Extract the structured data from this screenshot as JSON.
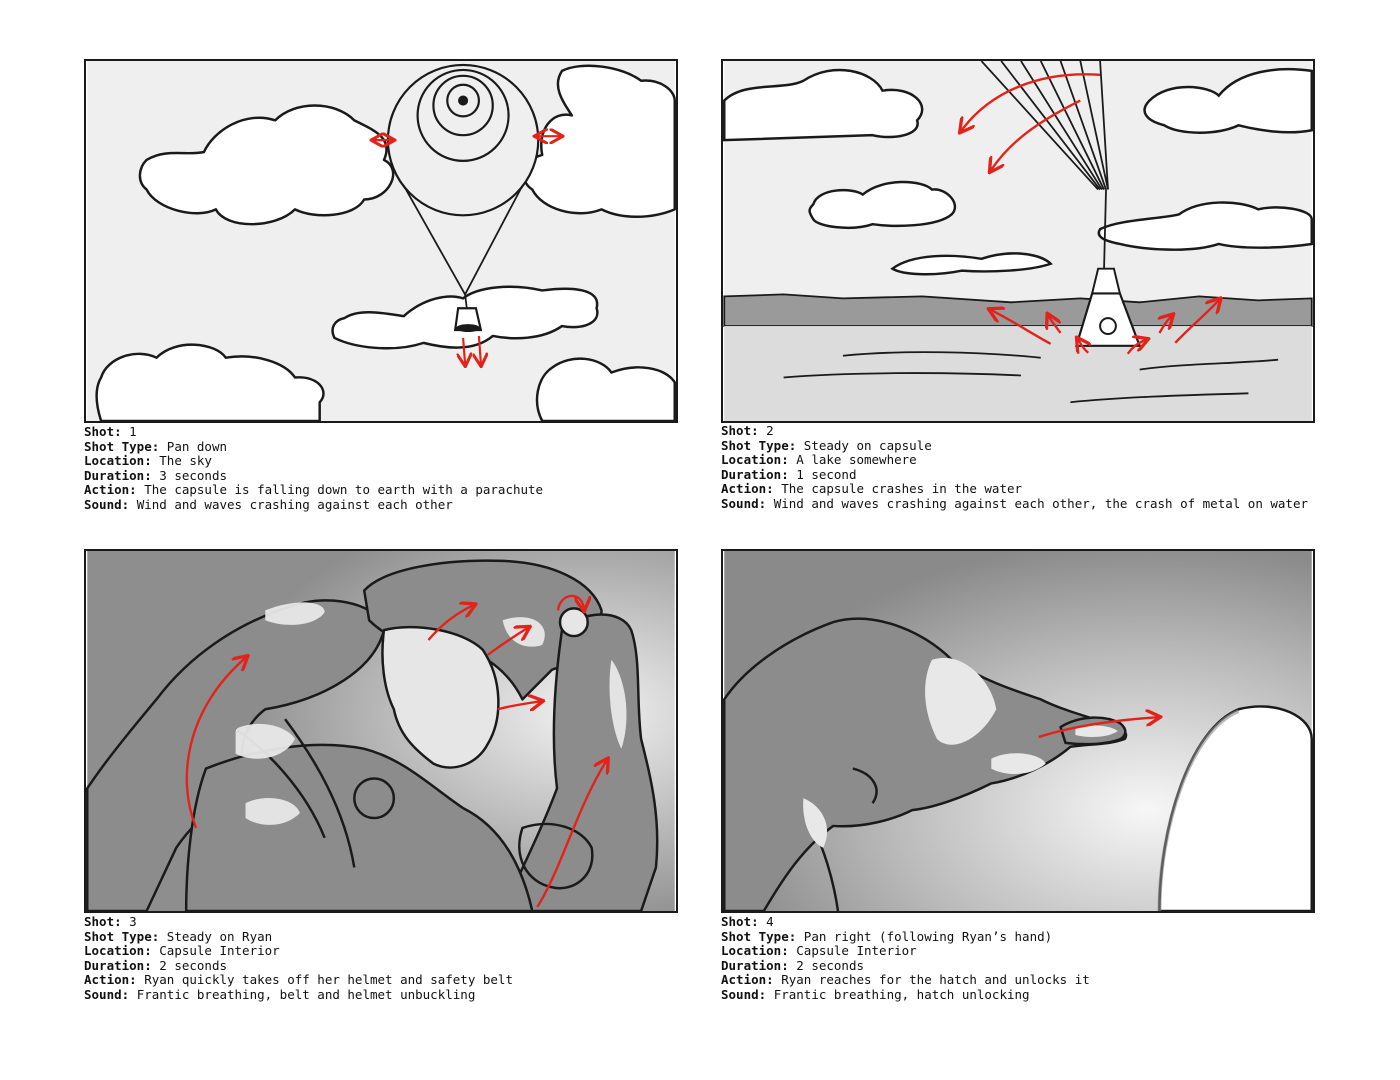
{
  "labels": {
    "shot": "Shot:",
    "shot_type": "Shot Type:",
    "location": "Location:",
    "duration": "Duration:",
    "action": "Action:",
    "sound": "Sound:"
  },
  "colors": {
    "arrow": "#e2231a",
    "sky": "#efefef",
    "ink": "#1a1a1a",
    "shade": "#8c8c8c"
  },
  "shots": [
    {
      "number": "1",
      "shot_type": "Pan down",
      "location": "The sky",
      "duration": "3 seconds",
      "action": "The capsule is falling down to earth with a parachute",
      "sound": "Wind and waves crashing against each other"
    },
    {
      "number": "2",
      "shot_type": "Steady on capsule",
      "location": "A lake somewhere",
      "duration": "1 second",
      "action": "The capsule crashes in the water",
      "sound": "Wind and waves crashing against each other, the crash of metal on water"
    },
    {
      "number": "3",
      "shot_type": "Steady on Ryan",
      "location": "Capsule Interior",
      "duration": "2 seconds",
      "action": "Ryan quickly takes off her helmet and safety belt",
      "sound": "Frantic breathing, belt and helmet unbuckling"
    },
    {
      "number": "4",
      "shot_type": "Pan right (following Ryan’s hand)",
      "location": "Capsule Interior",
      "duration": "2 seconds",
      "action": "Ryan reaches for the hatch and unlocks it",
      "sound": "Frantic breathing, hatch unlocking"
    }
  ]
}
